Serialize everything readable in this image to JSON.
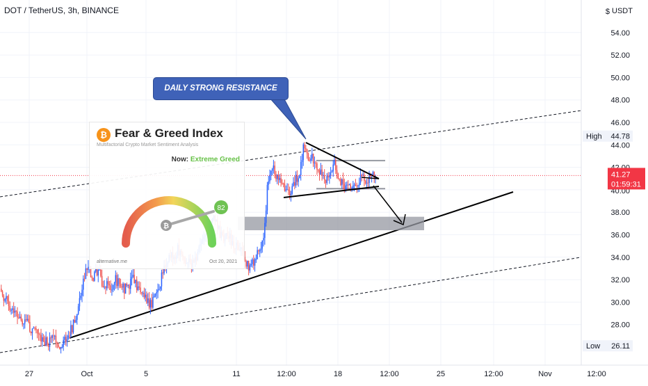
{
  "title": "DOT / TetherUS, 3h, BINANCE",
  "currency": "USDT",
  "axis": {
    "price_ticks": [
      "54.00",
      "52.00",
      "50.00",
      "48.00",
      "46.00",
      "44.00",
      "42.00",
      "38.00",
      "36.00",
      "34.00",
      "32.00",
      "30.00",
      "28.00"
    ],
    "partial_ticks": [
      "40.00"
    ],
    "time_ticks": [
      "27",
      "Oct",
      "5",
      "11",
      "12:00",
      "18",
      "12:00",
      "25",
      "12:00",
      "Nov",
      "12:00"
    ]
  },
  "high": {
    "label": "High",
    "value": "44.78"
  },
  "low": {
    "label": "Low",
    "value": "26.11"
  },
  "last": {
    "price": "41.27",
    "countdown": "01:59:31",
    "color": "#f23645"
  },
  "callout": {
    "text": "DAILY STRONG RESISTANCE"
  },
  "fear_greed": {
    "logo_glyph": "₿",
    "title": "Fear & Greed Index",
    "subtitle": "Multifactorial Crypto Market Sentiment Analysis",
    "now_label": "Now:",
    "now_value": "Extreme Greed",
    "score": "82",
    "site": "alternative.me",
    "date": "Oct 20, 2021"
  },
  "colors": {
    "up": "#2962ff",
    "down": "#ef5350",
    "text": "#131722"
  },
  "chart_data": {
    "type": "candlestick",
    "title": "DOT / TetherUS, 3h, BINANCE",
    "ylabel": "USDT",
    "ylim": [
      24.5,
      56
    ],
    "close_path": [
      [
        0,
        31.2
      ],
      [
        3,
        30.5
      ],
      [
        7,
        29.8
      ],
      [
        10,
        29.5
      ],
      [
        14,
        29.0
      ],
      [
        17,
        28.3
      ],
      [
        21,
        28.6
      ],
      [
        25,
        27.4
      ],
      [
        28,
        27.6
      ],
      [
        32,
        27.0
      ],
      [
        36,
        26.5
      ],
      [
        39,
        26.4
      ],
      [
        43,
        26.8
      ],
      [
        46,
        26.3
      ],
      [
        50,
        26.2
      ],
      [
        54,
        27.0
      ],
      [
        57,
        27.5
      ],
      [
        61,
        28.5
      ],
      [
        64,
        30.5
      ],
      [
        68,
        32.5
      ],
      [
        71,
        33.0
      ],
      [
        75,
        32.3
      ],
      [
        79,
        32.8
      ],
      [
        82,
        31.8
      ],
      [
        86,
        31.6
      ],
      [
        89,
        31.3
      ],
      [
        93,
        32.0
      ],
      [
        97,
        31.5
      ],
      [
        100,
        31.2
      ],
      [
        104,
        31.6
      ],
      [
        107,
        32.4
      ],
      [
        111,
        31.2
      ],
      [
        115,
        30.8
      ],
      [
        118,
        30.1
      ],
      [
        122,
        29.8
      ],
      [
        125,
        31.0
      ],
      [
        129,
        31.8
      ],
      [
        133,
        33.4
      ],
      [
        136,
        34.2
      ],
      [
        140,
        33.8
      ],
      [
        143,
        34.8
      ],
      [
        147,
        34.0
      ],
      [
        151,
        33.6
      ],
      [
        154,
        33.2
      ],
      [
        158,
        34.0
      ],
      [
        161,
        35.2
      ],
      [
        165,
        36.2
      ],
      [
        169,
        37.0
      ],
      [
        172,
        37.8
      ],
      [
        176,
        36.4
      ],
      [
        179,
        35.6
      ],
      [
        183,
        36.2
      ],
      [
        187,
        35.2
      ],
      [
        190,
        35.0
      ],
      [
        194,
        34.6
      ],
      [
        197,
        33.6
      ],
      [
        201,
        33.0
      ],
      [
        205,
        33.8
      ],
      [
        208,
        34.6
      ],
      [
        212,
        35.3
      ],
      [
        215,
        40.2
      ],
      [
        219,
        42.0
      ],
      [
        223,
        41.2
      ],
      [
        226,
        40.5
      ],
      [
        230,
        40.1
      ],
      [
        233,
        39.8
      ],
      [
        237,
        40.8
      ],
      [
        241,
        41.5
      ],
      [
        244,
        43.8
      ],
      [
        248,
        42.5
      ],
      [
        251,
        43.0
      ],
      [
        255,
        42.0
      ],
      [
        259,
        41.5
      ],
      [
        262,
        40.8
      ],
      [
        266,
        41.7
      ],
      [
        269,
        42.4
      ],
      [
        273,
        40.8
      ],
      [
        277,
        40.4
      ],
      [
        280,
        40.2
      ],
      [
        284,
        40.6
      ],
      [
        287,
        40.3
      ],
      [
        291,
        41.1
      ],
      [
        295,
        40.7
      ],
      [
        298,
        41.3
      ],
      [
        302,
        41.27
      ]
    ]
  }
}
